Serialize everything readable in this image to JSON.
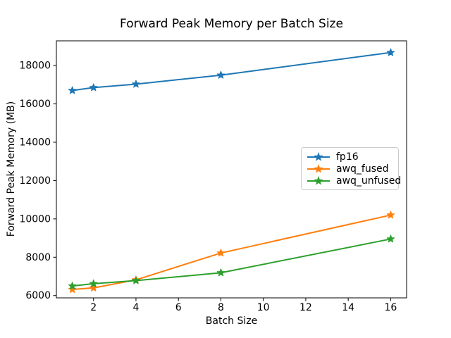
{
  "chart_data": {
    "type": "line",
    "title": "Forward Peak Memory per Batch Size",
    "xlabel": "Batch Size",
    "ylabel": "Forward Peak Memory (MB)",
    "x": [
      1,
      2,
      4,
      8,
      16
    ],
    "series": [
      {
        "name": "fp16",
        "color": "#1f77b4",
        "values": [
          16700,
          16850,
          17030,
          17500,
          18680
        ]
      },
      {
        "name": "awq_fused",
        "color": "#ff7f0e",
        "values": [
          6320,
          6400,
          6820,
          8220,
          10200
        ]
      },
      {
        "name": "awq_unfused",
        "color": "#2ca02c",
        "values": [
          6500,
          6620,
          6780,
          7190,
          8950
        ]
      }
    ],
    "xticks": [
      2,
      4,
      6,
      8,
      10,
      12,
      14,
      16
    ],
    "yticks": [
      6000,
      8000,
      10000,
      12000,
      14000,
      16000,
      18000
    ],
    "xlim": [
      0.25,
      16.75
    ],
    "ylim": [
      5880,
      19290
    ],
    "marker": "star",
    "grid": false,
    "legend_position": "center-right",
    "axis_color": "#000000",
    "background_color": "#ffffff"
  }
}
